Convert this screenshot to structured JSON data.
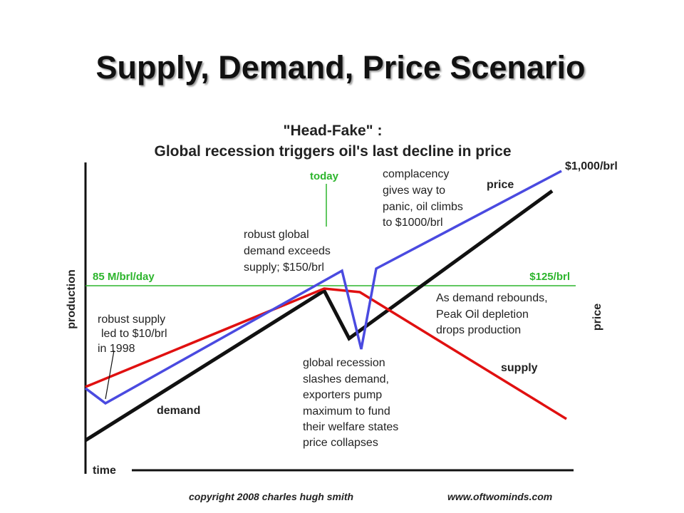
{
  "slide": {
    "title": "Supply, Demand, Price Scenario",
    "footer": {
      "copyright": "copyright 2008 charles hugh smith",
      "website": "www.oftwominds.com"
    }
  },
  "diagram": {
    "title_lines": [
      "\"Head-Fake\" :",
      "Global recession triggers oil's last decline in price"
    ],
    "axes": {
      "y_left": "production",
      "y_right": "price",
      "x": "time"
    },
    "reference": {
      "today": "today",
      "production_level": "85 M/brl/day",
      "price_level": "$125/brl"
    },
    "series_labels": {
      "price": "price",
      "supply": "supply",
      "demand": "demand",
      "price_end": "$1,000/brl"
    },
    "annotations": {
      "complacency": [
        "complacency",
        "gives way to",
        "panic, oil climbs",
        "to $1000/brl"
      ],
      "robust_demand": [
        "robust global",
        "demand exceeds",
        "supply; $150/brl"
      ],
      "rebound": [
        "As demand rebounds,",
        "Peak Oil depletion",
        "drops production"
      ],
      "robust_supply": [
        "robust supply",
        "led to $10/brl",
        "in 1998"
      ],
      "recession": [
        "global recession",
        "slashes demand,",
        "exporters pump",
        "maximum to fund",
        "their welfare states",
        "price collapses"
      ]
    }
  }
}
